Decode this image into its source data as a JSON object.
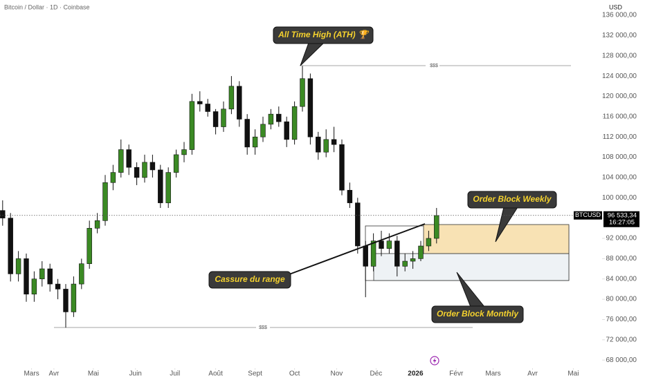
{
  "chart_data": {
    "type": "candlestick",
    "title": "Bitcoin / Dollar · 1D · Coinbase",
    "currency": "USD",
    "symbol": "BTCUSD",
    "up_color": "#3b8a24",
    "down_color": "#111111",
    "x": [
      2,
      8,
      14,
      20,
      26,
      32,
      38,
      44,
      50,
      56,
      62,
      68,
      74,
      80,
      86,
      92,
      98,
      104,
      110,
      116,
      122,
      128,
      134,
      140,
      146,
      152,
      158,
      164,
      170,
      176,
      182,
      188,
      194,
      200,
      206,
      212,
      218,
      224,
      230,
      236,
      242,
      248,
      254,
      260,
      266,
      272,
      278,
      284,
      290,
      296,
      302,
      308,
      314,
      320,
      326,
      332
    ],
    "open": [
      97500,
      96000,
      85000,
      88000,
      81000,
      84000,
      86000,
      83000,
      82000,
      77500,
      83000,
      87000,
      94000,
      95500,
      103000,
      105000,
      109500,
      106000,
      104000,
      107000,
      105500,
      99000,
      105000,
      108500,
      109500,
      119000,
      118500,
      117000,
      114000,
      117500,
      122000,
      115500,
      110000,
      112000,
      114500,
      116500,
      115000,
      111500,
      118000,
      123500,
      112000,
      109000,
      111500,
      110500,
      101500,
      99000,
      90500,
      86500,
      91500,
      90000,
      91500,
      86500,
      87500,
      88000,
      90500,
      92000
    ],
    "high": [
      99500,
      97000,
      89500,
      89000,
      85500,
      87500,
      87000,
      84000,
      83000,
      84500,
      88000,
      95500,
      97000,
      104500,
      106500,
      111500,
      110500,
      107000,
      108500,
      108500,
      106500,
      106000,
      109500,
      111000,
      120500,
      121000,
      119500,
      117500,
      119000,
      124000,
      123000,
      116500,
      113500,
      116000,
      117500,
      118000,
      116000,
      119000,
      126000,
      124500,
      113000,
      113500,
      114000,
      111500,
      103000,
      100000,
      91500,
      93000,
      93500,
      93000,
      92500,
      89000,
      89500,
      91500,
      93500,
      98000
    ],
    "low": [
      94500,
      83500,
      83500,
      79500,
      79500,
      82500,
      81500,
      80000,
      74400,
      76500,
      82000,
      86000,
      93000,
      94500,
      101500,
      104000,
      104500,
      102500,
      103000,
      104000,
      98000,
      98000,
      104000,
      107000,
      108500,
      117000,
      116000,
      112500,
      113000,
      116500,
      114000,
      108500,
      108500,
      111000,
      113500,
      114000,
      110000,
      110500,
      117000,
      110500,
      107500,
      108000,
      109000,
      100500,
      98000,
      89000,
      80400,
      85500,
      88500,
      89000,
      84500,
      85500,
      86000,
      87500,
      89500,
      91000
    ],
    "close": [
      96000,
      85000,
      88000,
      81000,
      84000,
      86000,
      83000,
      82000,
      77500,
      83000,
      87000,
      94000,
      95500,
      103000,
      105000,
      109500,
      106000,
      104000,
      107000,
      105500,
      99000,
      105000,
      108500,
      109500,
      119000,
      118500,
      117000,
      114000,
      117500,
      122000,
      115500,
      110000,
      112000,
      114500,
      116500,
      115000,
      111500,
      118000,
      123500,
      112000,
      109000,
      111500,
      110500,
      101500,
      99000,
      90500,
      86500,
      91500,
      90000,
      91500,
      86500,
      87500,
      88000,
      90500,
      92000,
      96500
    ],
    "xlim": [
      0,
      445
    ],
    "xticks": [
      {
        "value": 24,
        "label": "Mars"
      },
      {
        "value": 41,
        "label": "Avr"
      },
      {
        "value": 71,
        "label": "Mai"
      },
      {
        "value": 103,
        "label": "Juin"
      },
      {
        "value": 133,
        "label": "Juil"
      },
      {
        "value": 164,
        "label": "Août"
      },
      {
        "value": 194,
        "label": "Sept"
      },
      {
        "value": 224,
        "label": "Oct"
      },
      {
        "value": 256,
        "label": "Nov"
      },
      {
        "value": 286,
        "label": "Déc"
      },
      {
        "value": 316,
        "label": "2026"
      },
      {
        "value": 347,
        "label": "Févr"
      },
      {
        "value": 375,
        "label": "Mars"
      },
      {
        "value": 405,
        "label": "Avr"
      },
      {
        "value": 436,
        "label": "Mai"
      }
    ],
    "ylim": [
      66800,
      139000
    ],
    "yticks": [
      {
        "value": 68000,
        "label": "68 000,00"
      },
      {
        "value": 72000,
        "label": "72 000,00"
      },
      {
        "value": 76000,
        "label": "76 000,00"
      },
      {
        "value": 80000,
        "label": "80 000,00"
      },
      {
        "value": 84000,
        "label": "84 000,00"
      },
      {
        "value": 88000,
        "label": "88 000,00"
      },
      {
        "value": 92000,
        "label": "92 000,00"
      },
      {
        "value": 96000,
        "label": "96 000,00"
      },
      {
        "value": 100000,
        "label": "100 000,00"
      },
      {
        "value": 104000,
        "label": "104 000,00"
      },
      {
        "value": 108000,
        "label": "108 000,00"
      },
      {
        "value": 112000,
        "label": "112 000,00"
      },
      {
        "value": 116000,
        "label": "116 000,00"
      },
      {
        "value": 120000,
        "label": "120 000,00"
      },
      {
        "value": 124000,
        "label": "124 000,00"
      },
      {
        "value": 128000,
        "label": "128 000,00"
      },
      {
        "value": 132000,
        "label": "132 000,00"
      },
      {
        "value": 136000,
        "label": "136 000,00"
      }
    ],
    "last_price": {
      "value": 96533.34,
      "label": "96 533,34"
    },
    "countdown": "16:27:05",
    "annotations": [
      "All Time High (ATH) 🏆",
      "Order Block Weekly",
      "Cassure du range",
      "Order Block Monthly"
    ],
    "level_labels": [
      "$$$",
      "$$$"
    ]
  }
}
